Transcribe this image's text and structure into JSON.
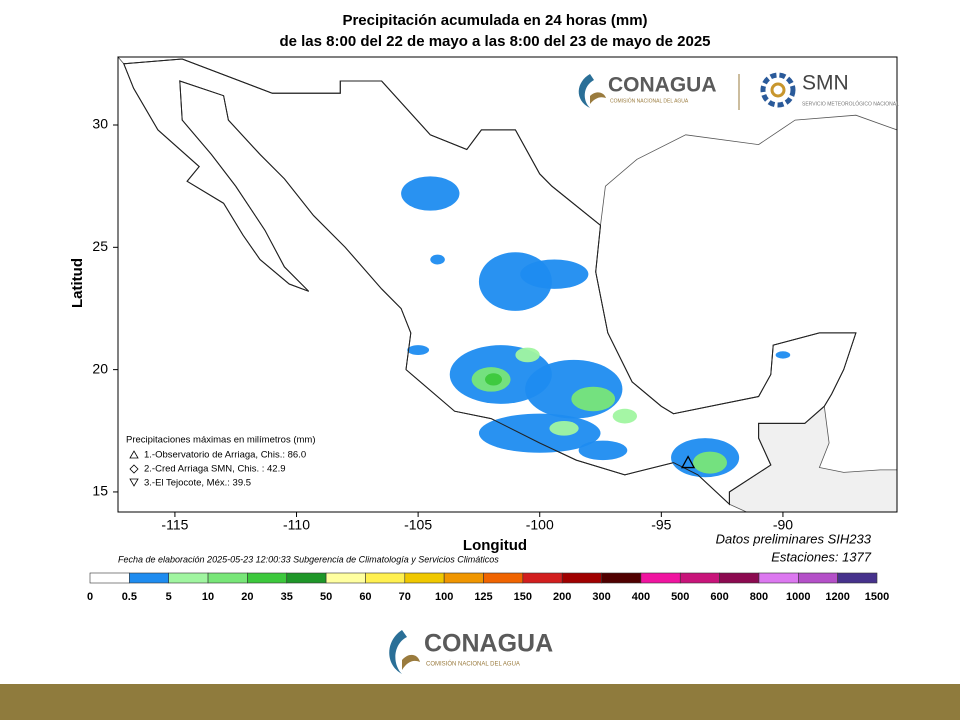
{
  "header": {
    "title": "Precipitación acumulada en 24 horas (mm)",
    "subtitle": "de las 8:00 del 22 de mayo a las 8:00 del 23 de mayo de 2025"
  },
  "map": {
    "x_label": "Longitud",
    "y_label": "Latitud",
    "xlim": [
      -117.34,
      -85.31
    ],
    "ylim": [
      14.18,
      32.78
    ],
    "xticks": [
      -115,
      -110,
      -105,
      -100,
      -95,
      -90
    ],
    "yticks": [
      15,
      20,
      25,
      30
    ]
  },
  "stations": {
    "title": "Precipitaciones máximas en milímetros (mm)",
    "entries": [
      "1.-Observatorio de Arriaga, Chis.: 86.0",
      "2.-Cred Arriaga SMN, Chis. : 42.9",
      "3.-El Tejocote, Méx.: 39.5"
    ]
  },
  "footer": {
    "date_note": "Fecha de elaboración 2025-05-23 12:00:33 Subgerencia de Climatología y Servicios Climáticos",
    "data_note": "Datos preliminares SIH233",
    "stations_note": "Estaciones:  1377"
  },
  "colorbar": {
    "bounds": [
      0,
      0.5,
      5,
      10,
      20,
      35,
      50,
      60,
      70,
      100,
      125,
      150,
      200,
      300,
      400,
      500,
      600,
      800,
      1000,
      1200,
      1500
    ],
    "colors": [
      "#ffffff",
      "#1e8cf0",
      "#a0f5a0",
      "#78e678",
      "#3cc83c",
      "#1e9628",
      "#ffffa0",
      "#fff050",
      "#f0c800",
      "#f09600",
      "#f06400",
      "#d21e1e",
      "#a00000",
      "#500000",
      "#f014a0",
      "#c8147a",
      "#8c0a50",
      "#dc78f0",
      "#b450c8",
      "#46328c"
    ]
  },
  "logos": {
    "conagua": "CONAGUA",
    "conagua_sub": "COMISIÓN NACIONAL DEL AGUA",
    "smn": "SMN",
    "smn_sub": "SERVICIO METEOROLÓGICO NACIONAL"
  }
}
